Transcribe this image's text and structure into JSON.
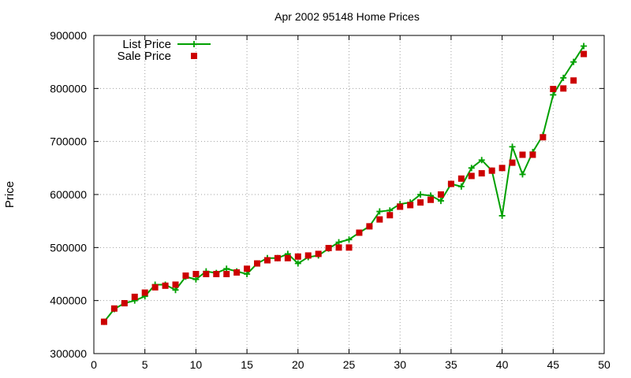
{
  "chart_data": {
    "type": "line",
    "title": "Apr 2002 95148 Home Prices",
    "xlabel": "",
    "ylabel": "Price",
    "xlim": [
      0,
      50
    ],
    "ylim": [
      300000,
      900000
    ],
    "xticks": [
      0,
      5,
      10,
      15,
      20,
      25,
      30,
      35,
      40,
      45,
      50
    ],
    "yticks": [
      300000,
      400000,
      500000,
      600000,
      700000,
      800000,
      900000
    ],
    "xtick_labels": [
      "0",
      "5",
      "10",
      "15",
      "20",
      "25",
      "30",
      "35",
      "40",
      "45",
      "50"
    ],
    "ytick_labels": [
      "300000",
      "400000",
      "500000",
      "600000",
      "700000",
      "800000",
      "900000"
    ],
    "grid": true,
    "legend_position": "top-left",
    "series": [
      {
        "name": "List Price",
        "style": "line+plus",
        "color": "#00a000",
        "x": [
          1,
          2,
          3,
          4,
          5,
          6,
          7,
          8,
          9,
          10,
          11,
          12,
          13,
          14,
          15,
          16,
          17,
          18,
          19,
          20,
          21,
          22,
          23,
          24,
          25,
          26,
          27,
          28,
          29,
          30,
          31,
          32,
          33,
          34,
          35,
          36,
          37,
          38,
          39,
          40,
          41,
          42,
          43,
          44,
          45,
          46,
          47,
          48
        ],
        "values": [
          360000,
          384000,
          395000,
          400000,
          408000,
          430000,
          430000,
          420000,
          445000,
          440000,
          455000,
          452000,
          460000,
          455000,
          450000,
          470000,
          480000,
          480000,
          488000,
          470000,
          482000,
          485000,
          498000,
          510000,
          515000,
          528000,
          540000,
          568000,
          570000,
          582000,
          585000,
          600000,
          598000,
          588000,
          620000,
          615000,
          650000,
          665000,
          645000,
          560000,
          690000,
          638000,
          680000,
          712000,
          788000,
          820000,
          850000,
          880000
        ]
      },
      {
        "name": "Sale Price",
        "style": "square",
        "color": "#cc0000",
        "x": [
          1,
          2,
          3,
          4,
          5,
          6,
          7,
          8,
          9,
          10,
          11,
          12,
          13,
          14,
          15,
          16,
          17,
          18,
          19,
          20,
          21,
          22,
          23,
          24,
          25,
          26,
          27,
          28,
          29,
          30,
          31,
          32,
          33,
          34,
          35,
          36,
          37,
          38,
          39,
          40,
          41,
          42,
          43,
          44,
          45,
          46,
          47,
          48
        ],
        "values": [
          360000,
          385000,
          395000,
          407000,
          415000,
          425000,
          428000,
          430000,
          447000,
          450000,
          450000,
          450000,
          450000,
          453000,
          460000,
          470000,
          476000,
          480000,
          480000,
          483000,
          485000,
          488000,
          499000,
          500000,
          500000,
          528000,
          540000,
          553000,
          561000,
          577000,
          580000,
          585000,
          590000,
          600000,
          620000,
          630000,
          635000,
          640000,
          645000,
          650000,
          660000,
          675000,
          675000,
          708000,
          799000,
          800000,
          815000,
          865000
        ]
      }
    ]
  }
}
